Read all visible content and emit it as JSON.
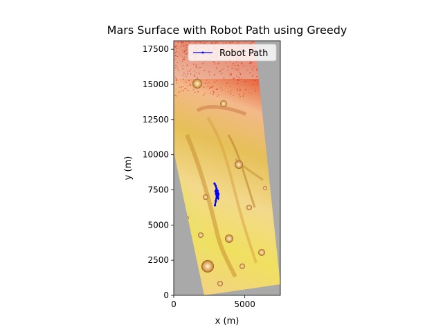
{
  "chart_data": {
    "type": "scatter",
    "title": "Mars Surface with Robot Path using Greedy",
    "xlabel": "x (m)",
    "ylabel": "y (m)",
    "xlim": [
      0,
      7500
    ],
    "ylim": [
      0,
      18100
    ],
    "x_ticks": [
      0,
      5000
    ],
    "y_ticks": [
      0,
      2500,
      5000,
      7500,
      10000,
      12500,
      15000,
      17500
    ],
    "background": "terrain elevation map (white-yellow-red colormap) on gray no-data",
    "legend_position": "top-right",
    "series": [
      {
        "name": "Robot Path",
        "color": "#0000ff",
        "marker": "dot",
        "line": true,
        "x": [
          2870,
          2950,
          3010,
          2940,
          2980,
          3050,
          3120,
          3150,
          3080,
          3020,
          2960,
          2900
        ],
        "y": [
          7950,
          7800,
          7600,
          7400,
          7200,
          7000,
          6900,
          7200,
          7450,
          7100,
          6700,
          6400
        ]
      }
    ]
  },
  "colors": {
    "nodata": "#a9a9a9",
    "path": "#0000ff"
  }
}
